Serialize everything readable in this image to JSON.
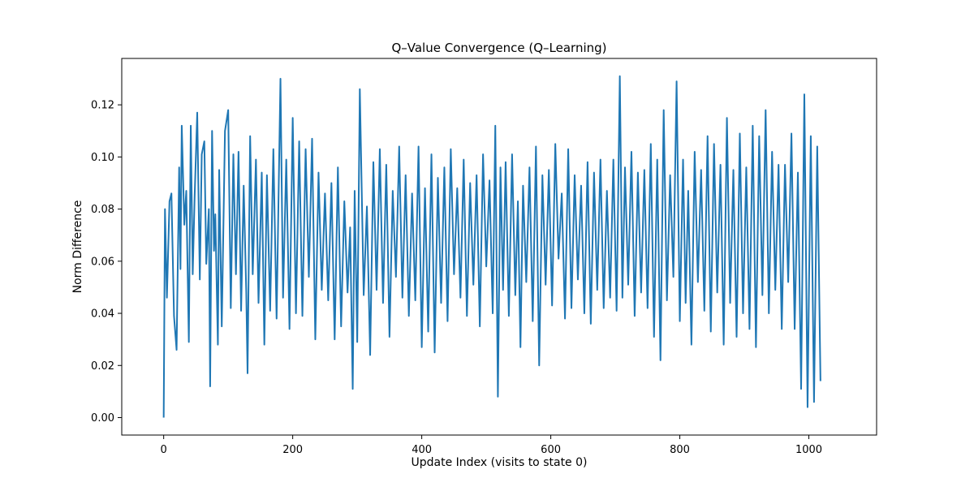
{
  "chart_data": {
    "type": "line",
    "title": "Q–Value Convergence (Q–Learning)",
    "xlabel": "Update Index (visits to state 0)",
    "ylabel": "Norm Difference",
    "xlim": [
      -65,
      1105
    ],
    "ylim": [
      -0.0067,
      0.1378
    ],
    "xticks": [
      0,
      200,
      400,
      600,
      800,
      1000
    ],
    "yticks": [
      0.0,
      0.02,
      0.04,
      0.06,
      0.08,
      0.1,
      0.12
    ],
    "ytick_format_decimals": 2,
    "grid": false,
    "legend": "none",
    "colors": {
      "line": "#1f77b4",
      "axes": "#000000",
      "background": "#ffffff"
    },
    "series": [
      {
        "n_points": 1053,
        "sample_x": [
          0,
          2,
          5,
          9,
          12,
          16,
          20,
          24,
          26,
          28,
          32,
          35,
          39,
          42,
          45,
          48,
          52,
          56,
          59,
          63,
          66,
          70,
          72,
          75,
          78,
          80,
          84,
          86,
          90,
          95,
          100,
          104,
          108,
          112,
          116,
          120,
          124,
          128,
          130,
          134,
          138,
          143,
          147,
          152,
          156,
          160,
          165,
          170,
          175,
          181,
          185,
          190,
          195,
          200,
          205,
          210,
          215,
          220,
          225,
          230,
          235,
          240,
          245,
          250,
          255,
          260,
          265,
          270,
          275,
          280,
          285,
          289,
          293,
          296,
          300,
          304,
          310,
          315,
          320,
          325,
          330,
          335,
          340,
          345,
          350,
          355,
          360,
          365,
          370,
          375,
          380,
          385,
          390,
          395,
          400,
          405,
          410,
          415,
          420,
          425,
          430,
          435,
          440,
          445,
          450,
          455,
          460,
          465,
          470,
          475,
          480,
          485,
          490,
          495,
          500,
          505,
          510,
          514,
          518,
          522,
          526,
          530,
          535,
          540,
          545,
          549,
          553,
          557,
          562,
          567,
          572,
          577,
          582,
          587,
          592,
          597,
          602,
          607,
          612,
          617,
          622,
          627,
          632,
          637,
          642,
          647,
          652,
          657,
          662,
          667,
          672,
          677,
          682,
          687,
          692,
          697,
          702,
          707,
          711,
          715,
          720,
          725,
          730,
          735,
          740,
          745,
          750,
          755,
          760,
          765,
          770,
          775,
          780,
          785,
          790,
          795,
          800,
          805,
          809,
          813,
          818,
          823,
          828,
          833,
          838,
          843,
          848,
          853,
          858,
          863,
          868,
          873,
          878,
          883,
          888,
          893,
          898,
          903,
          908,
          913,
          918,
          923,
          928,
          933,
          938,
          943,
          948,
          953,
          958,
          963,
          968,
          973,
          978,
          983,
          988,
          993,
          998,
          1003,
          1008,
          1013,
          1018,
          1023,
          1028,
          1033,
          1036,
          1040,
          1043,
          1046,
          1048,
          1050,
          1053
        ],
        "sample_y": [
          0.0,
          0.08,
          0.046,
          0.083,
          0.086,
          0.039,
          0.026,
          0.096,
          0.057,
          0.112,
          0.074,
          0.087,
          0.029,
          0.112,
          0.055,
          0.085,
          0.117,
          0.053,
          0.101,
          0.106,
          0.059,
          0.08,
          0.012,
          0.11,
          0.064,
          0.078,
          0.028,
          0.095,
          0.035,
          0.11,
          0.118,
          0.042,
          0.101,
          0.055,
          0.102,
          0.041,
          0.089,
          0.048,
          0.017,
          0.108,
          0.055,
          0.099,
          0.044,
          0.094,
          0.028,
          0.093,
          0.041,
          0.103,
          0.038,
          0.13,
          0.046,
          0.099,
          0.034,
          0.115,
          0.04,
          0.106,
          0.039,
          0.103,
          0.054,
          0.107,
          0.03,
          0.094,
          0.049,
          0.086,
          0.045,
          0.09,
          0.03,
          0.096,
          0.035,
          0.083,
          0.048,
          0.073,
          0.011,
          0.087,
          0.029,
          0.126,
          0.047,
          0.081,
          0.024,
          0.098,
          0.049,
          0.103,
          0.044,
          0.097,
          0.031,
          0.087,
          0.054,
          0.104,
          0.046,
          0.093,
          0.039,
          0.086,
          0.045,
          0.104,
          0.027,
          0.088,
          0.033,
          0.101,
          0.025,
          0.092,
          0.044,
          0.096,
          0.037,
          0.103,
          0.055,
          0.088,
          0.046,
          0.099,
          0.039,
          0.09,
          0.051,
          0.093,
          0.035,
          0.101,
          0.058,
          0.091,
          0.04,
          0.112,
          0.008,
          0.096,
          0.049,
          0.098,
          0.039,
          0.101,
          0.047,
          0.083,
          0.027,
          0.089,
          0.052,
          0.096,
          0.037,
          0.104,
          0.02,
          0.093,
          0.051,
          0.095,
          0.043,
          0.105,
          0.061,
          0.086,
          0.038,
          0.103,
          0.042,
          0.093,
          0.053,
          0.089,
          0.04,
          0.098,
          0.036,
          0.094,
          0.049,
          0.099,
          0.042,
          0.087,
          0.046,
          0.099,
          0.041,
          0.131,
          0.046,
          0.096,
          0.051,
          0.102,
          0.039,
          0.094,
          0.048,
          0.095,
          0.042,
          0.105,
          0.031,
          0.099,
          0.022,
          0.118,
          0.045,
          0.093,
          0.054,
          0.129,
          0.037,
          0.099,
          0.044,
          0.087,
          0.028,
          0.102,
          0.052,
          0.095,
          0.041,
          0.108,
          0.033,
          0.105,
          0.048,
          0.097,
          0.028,
          0.115,
          0.044,
          0.095,
          0.031,
          0.109,
          0.04,
          0.096,
          0.034,
          0.112,
          0.027,
          0.108,
          0.047,
          0.118,
          0.04,
          0.102,
          0.049,
          0.097,
          0.034,
          0.097,
          0.052,
          0.109,
          0.034,
          0.094,
          0.011,
          0.124,
          0.004,
          0.108,
          0.006,
          0.104,
          0.014
        ]
      }
    ]
  }
}
